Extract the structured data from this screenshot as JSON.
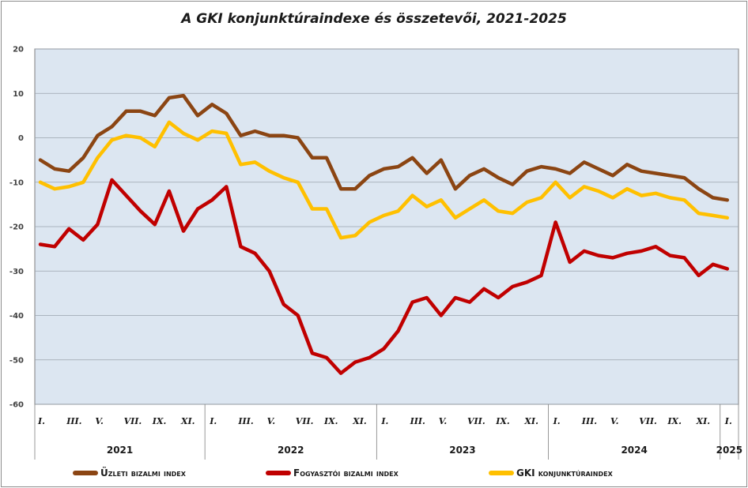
{
  "chart_data": {
    "type": "line",
    "title": "A GKI konjunktúraindexe és összetevői, 2021-2025",
    "ylim": [
      -60,
      20
    ],
    "y_ticks": [
      "20",
      "10",
      "0",
      "-10",
      "-20",
      "-30",
      "-40",
      "-50",
      "-60"
    ],
    "grid": "horizontal",
    "legend_position": "bottom",
    "month_labels": [
      "I.",
      "III.",
      "V.",
      "VII.",
      "IX.",
      "XI.",
      "I.",
      "III.",
      "V.",
      "VII.",
      "IX.",
      "XI.",
      "I.",
      "III.",
      "V.",
      "VII.",
      "IX.",
      "XI.",
      "I.",
      "III.",
      "V.",
      "VII.",
      "IX.",
      "XI.",
      "I."
    ],
    "years": [
      "2021",
      "2022",
      "2023",
      "2024",
      "2025"
    ],
    "x": [
      "2021-01",
      "2021-02",
      "2021-03",
      "2021-04",
      "2021-05",
      "2021-06",
      "2021-07",
      "2021-08",
      "2021-09",
      "2021-10",
      "2021-11",
      "2021-12",
      "2022-01",
      "2022-02",
      "2022-03",
      "2022-04",
      "2022-05",
      "2022-06",
      "2022-07",
      "2022-08",
      "2022-09",
      "2022-10",
      "2022-11",
      "2022-12",
      "2023-01",
      "2023-02",
      "2023-03",
      "2023-04",
      "2023-05",
      "2023-06",
      "2023-07",
      "2023-08",
      "2023-09",
      "2023-10",
      "2023-11",
      "2023-12",
      "2024-01",
      "2024-02",
      "2024-03",
      "2024-04",
      "2024-05",
      "2024-06",
      "2024-07",
      "2024-08",
      "2024-09",
      "2024-10",
      "2024-11",
      "2024-12",
      "2025-01"
    ],
    "series": [
      {
        "name": "Üzleti bizalmi index",
        "color": "#8B4513",
        "values": [
          -5,
          -7,
          -7.5,
          -4.5,
          0.5,
          2.5,
          6,
          6,
          5,
          9,
          9.5,
          5,
          7.5,
          5.5,
          0.5,
          1.5,
          0.5,
          0.5,
          0,
          -4.5,
          -4.5,
          -11.5,
          -11.5,
          -8.5,
          -7,
          -6.5,
          -4.5,
          -8,
          -5,
          -11.5,
          -8.5,
          -7,
          -9,
          -10.5,
          -7.5,
          -6.5,
          -7,
          -8,
          -5.5,
          -7,
          -8.5,
          -6,
          -7.5,
          -8,
          -8.5,
          -9,
          -11.5,
          -13.5,
          -14
        ]
      },
      {
        "name": "Fogyasztói bizalmi index",
        "color": "#C00000",
        "values": [
          -24,
          -24.5,
          -20.5,
          -23,
          -19.5,
          -9.5,
          -13,
          -16.5,
          -19.5,
          -12,
          -21,
          -16,
          -14,
          -11,
          -24.5,
          -26,
          -30,
          -37.5,
          -40,
          -48.5,
          -49.5,
          -53,
          -50.5,
          -49.5,
          -47.5,
          -43.5,
          -37,
          -36,
          -40,
          -36,
          -37,
          -34,
          -36,
          -33.5,
          -32.5,
          -31,
          -19,
          -28,
          -25.5,
          -26.5,
          -27,
          -26,
          -25.5,
          -24.5,
          -26.5,
          -27,
          -31,
          -28.5,
          -29.5
        ]
      },
      {
        "name": "GKI konjunktúraindex",
        "color": "#FFC000",
        "values": [
          -10,
          -11.5,
          -11,
          -10,
          -4.5,
          -0.5,
          0.5,
          0,
          -2,
          3.5,
          1,
          -0.5,
          1.5,
          1,
          -6,
          -5.5,
          -7.5,
          -9,
          -10,
          -16,
          -16,
          -22.5,
          -22,
          -19,
          -17.5,
          -16.5,
          -13,
          -15.5,
          -14,
          -18,
          -16,
          -14,
          -16.5,
          -17,
          -14.5,
          -13.5,
          -10,
          -13.5,
          -11,
          -12,
          -13.5,
          -11.5,
          -13,
          -12.5,
          -13.5,
          -14,
          -17,
          -17.5,
          -18
        ]
      }
    ]
  }
}
